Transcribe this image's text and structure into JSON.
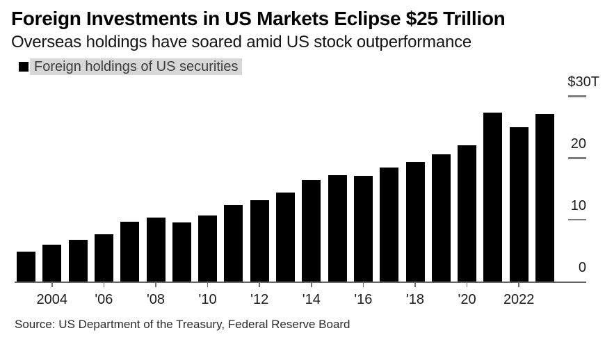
{
  "header": {
    "title": "Foreign Investments in US Markets Eclipse $25 Trillion",
    "subtitle": "Overseas holdings have soared amid US stock outperformance"
  },
  "legend": {
    "label": "Foreign holdings of US securities",
    "swatch_color": "#000000",
    "highlight_bg": "#d8d8d8"
  },
  "source": "Source: US Department of the Treasury, Federal Reserve Board",
  "chart_data": {
    "type": "bar",
    "title": "Foreign Investments in US Markets Eclipse $25 Trillion",
    "subtitle": "Overseas holdings have soared amid US stock outperformance",
    "legend_entries": [
      "Foreign holdings of US securities"
    ],
    "unit": "USD trillions",
    "bar_color": "#000000",
    "grid": false,
    "legend_position": "top-left",
    "yaxis_position": "right",
    "ylim": [
      0,
      30
    ],
    "categories": [
      2003,
      2004,
      2005,
      2006,
      2007,
      2008,
      2009,
      2010,
      2011,
      2012,
      2013,
      2014,
      2015,
      2016,
      2017,
      2018,
      2019,
      2020,
      2021,
      2022,
      2023
    ],
    "values": [
      4.8,
      6.0,
      6.7,
      7.7,
      9.7,
      10.3,
      9.6,
      10.7,
      12.4,
      13.2,
      14.4,
      16.4,
      17.2,
      17.1,
      18.4,
      19.4,
      20.6,
      22.0,
      27.3,
      25.0,
      27.1
    ],
    "yticks": [
      {
        "value": 0,
        "label": "0"
      },
      {
        "value": 10,
        "label": "10"
      },
      {
        "value": 20,
        "label": "20"
      },
      {
        "value": 30,
        "label": "$30T"
      }
    ],
    "xticks": [
      {
        "year": 2004,
        "label": "2004"
      },
      {
        "year": 2006,
        "label": "'06"
      },
      {
        "year": 2008,
        "label": "'08"
      },
      {
        "year": 2010,
        "label": "'10"
      },
      {
        "year": 2012,
        "label": "'12"
      },
      {
        "year": 2014,
        "label": "'14"
      },
      {
        "year": 2016,
        "label": "'16"
      },
      {
        "year": 2018,
        "label": "'18"
      },
      {
        "year": 2020,
        "label": "'20"
      },
      {
        "year": 2022,
        "label": "2022"
      }
    ]
  }
}
